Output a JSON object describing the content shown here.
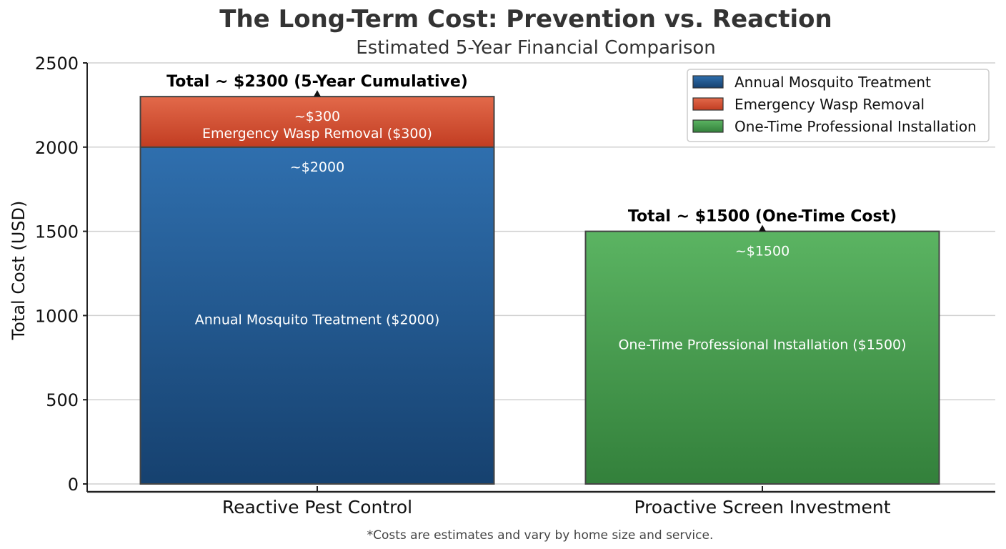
{
  "chart_data": {
    "type": "bar",
    "stacked": true,
    "title": "The Long-Term Cost: Prevention vs. Reaction",
    "subtitle": "Estimated 5-Year Financial Comparison",
    "xlabel": "",
    "ylabel": "Total Cost (USD)",
    "ylim": [
      0,
      2500
    ],
    "yticks": [
      0,
      500,
      1000,
      1500,
      2000,
      2500
    ],
    "grid": true,
    "legend_position": "top-right",
    "categories": [
      "Reactive Pest Control",
      "Proactive Screen Investment"
    ],
    "series": [
      {
        "name": "Annual Mosquito Treatment",
        "values": [
          2000,
          0
        ],
        "color": "#2a6aa8",
        "value_labels": [
          "~$2000",
          ""
        ],
        "segment_labels": [
          "Annual Mosquito Treatment ($2000)",
          ""
        ]
      },
      {
        "name": "Emergency Wasp Removal",
        "values": [
          300,
          0
        ],
        "color": "#d9543a",
        "value_labels": [
          "~$300",
          ""
        ],
        "segment_labels": [
          "Emergency Wasp Removal ($300)",
          ""
        ]
      },
      {
        "name": "One-Time Professional Installation",
        "values": [
          0,
          1500
        ],
        "color": "#46a34f",
        "value_labels": [
          "",
          "~$1500"
        ],
        "segment_labels": [
          "",
          "One-Time Professional Installation ($1500)"
        ]
      }
    ],
    "totals": [
      "Total ~ $2300 (5-Year Cumulative)",
      "Total ~ $1500 (One-Time Cost)"
    ],
    "footnote": "*Costs are estimates and vary by home size and service."
  }
}
